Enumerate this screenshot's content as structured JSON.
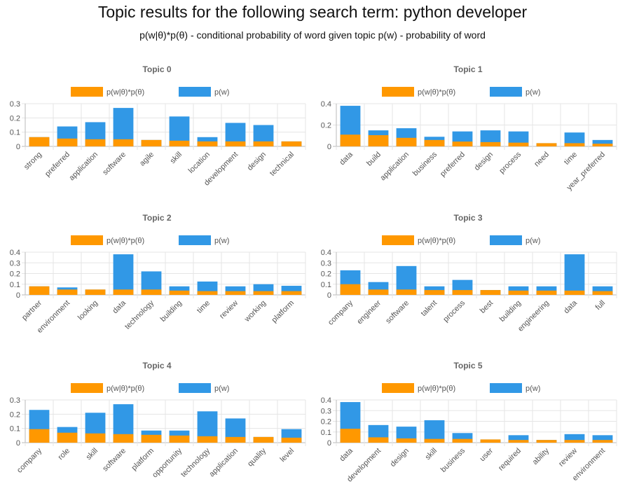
{
  "page": {
    "title": "Topic results for the following search term: python developer",
    "subtitle": "p(w|θ)*p(θ) - conditional probability of word given topic p(w) - probability of word"
  },
  "colors": {
    "conditional": "#ff9800",
    "marginal": "#3198e6"
  },
  "chart_data": [
    {
      "type": "bar",
      "title": "Topic 0",
      "legend": [
        "p(w|θ)*p(θ)",
        "p(w)"
      ],
      "legend_position": "top",
      "categories": [
        "strong",
        "preferred",
        "application",
        "software",
        "agile",
        "skill",
        "location",
        "development",
        "design",
        "technical"
      ],
      "series": [
        {
          "name": "p(w|θ)*p(θ)",
          "values": [
            0.065,
            0.055,
            0.05,
            0.05,
            0.045,
            0.04,
            0.035,
            0.035,
            0.035,
            0.035
          ]
        },
        {
          "name": "p(w)",
          "values": [
            0.065,
            0.14,
            0.17,
            0.27,
            0.045,
            0.21,
            0.065,
            0.165,
            0.15,
            0.035
          ]
        }
      ],
      "ylim": [
        0,
        0.3
      ],
      "yticks": [
        "0",
        "0.1",
        "0.2",
        "0.3"
      ],
      "grid": true,
      "overlay": true
    },
    {
      "type": "bar",
      "title": "Topic 1",
      "legend": [
        "p(w|θ)*p(θ)",
        "p(w)"
      ],
      "legend_position": "top",
      "categories": [
        "data",
        "build",
        "application",
        "business",
        "preferred",
        "design",
        "process",
        "need",
        "time",
        "year_preferred"
      ],
      "series": [
        {
          "name": "p(w|θ)*p(θ)",
          "values": [
            0.11,
            0.105,
            0.08,
            0.06,
            0.045,
            0.04,
            0.035,
            0.03,
            0.03,
            0.025
          ]
        },
        {
          "name": "p(w)",
          "values": [
            0.38,
            0.15,
            0.17,
            0.09,
            0.14,
            0.15,
            0.14,
            0.03,
            0.13,
            0.06
          ]
        }
      ],
      "ylim": [
        0,
        0.4
      ],
      "yticks": [
        "0",
        "0.2",
        "0.4"
      ],
      "grid": true,
      "overlay": true
    },
    {
      "type": "bar",
      "title": "Topic 2",
      "legend": [
        "p(w|θ)*p(θ)",
        "p(w)"
      ],
      "legend_position": "top",
      "categories": [
        "partner",
        "environment",
        "looking",
        "data",
        "technology",
        "building",
        "time",
        "review",
        "working",
        "platform"
      ],
      "series": [
        {
          "name": "p(w|θ)*p(θ)",
          "values": [
            0.08,
            0.05,
            0.05,
            0.05,
            0.05,
            0.04,
            0.035,
            0.035,
            0.035,
            0.035
          ]
        },
        {
          "name": "p(w)",
          "values": [
            0.08,
            0.07,
            0.05,
            0.38,
            0.22,
            0.08,
            0.125,
            0.08,
            0.1,
            0.085
          ]
        }
      ],
      "ylim": [
        0,
        0.4
      ],
      "yticks": [
        "0",
        "0.1",
        "0.2",
        "0.3",
        "0.4"
      ],
      "grid": true,
      "overlay": true
    },
    {
      "type": "bar",
      "title": "Topic 3",
      "legend": [
        "p(w|θ)*p(θ)",
        "p(w)"
      ],
      "legend_position": "top",
      "categories": [
        "company",
        "engineer",
        "software",
        "talent",
        "process",
        "best",
        "building",
        "engineering",
        "data",
        "full"
      ],
      "series": [
        {
          "name": "p(w|θ)*p(θ)",
          "values": [
            0.1,
            0.05,
            0.05,
            0.045,
            0.045,
            0.045,
            0.04,
            0.04,
            0.04,
            0.035
          ]
        },
        {
          "name": "p(w)",
          "values": [
            0.23,
            0.12,
            0.27,
            0.08,
            0.14,
            0.045,
            0.08,
            0.08,
            0.38,
            0.08
          ]
        }
      ],
      "ylim": [
        0,
        0.4
      ],
      "yticks": [
        "0",
        "0.1",
        "0.2",
        "0.3",
        "0.4"
      ],
      "grid": true,
      "overlay": true
    },
    {
      "type": "bar",
      "title": "Topic 4",
      "legend": [
        "p(w|θ)*p(θ)",
        "p(w)"
      ],
      "legend_position": "top",
      "categories": [
        "company",
        "role",
        "skill",
        "software",
        "platform",
        "opportunity",
        "technology",
        "application",
        "quality",
        "level"
      ],
      "series": [
        {
          "name": "p(w|θ)*p(θ)",
          "values": [
            0.095,
            0.07,
            0.065,
            0.06,
            0.055,
            0.05,
            0.045,
            0.04,
            0.04,
            0.035
          ]
        },
        {
          "name": "p(w)",
          "values": [
            0.23,
            0.11,
            0.21,
            0.27,
            0.085,
            0.085,
            0.22,
            0.17,
            0.04,
            0.095
          ]
        }
      ],
      "ylim": [
        0,
        0.3
      ],
      "yticks": [
        "0",
        "0.1",
        "0.2",
        "0.3"
      ],
      "grid": true,
      "overlay": true
    },
    {
      "type": "bar",
      "title": "Topic 5",
      "legend": [
        "p(w|θ)*p(θ)",
        "p(w)"
      ],
      "legend_position": "top",
      "categories": [
        "data",
        "development",
        "design",
        "skill",
        "business",
        "user",
        "required",
        "ability",
        "review",
        "environment"
      ],
      "series": [
        {
          "name": "p(w|θ)*p(θ)",
          "values": [
            0.13,
            0.05,
            0.04,
            0.035,
            0.035,
            0.03,
            0.025,
            0.025,
            0.025,
            0.025
          ]
        },
        {
          "name": "p(w)",
          "values": [
            0.38,
            0.165,
            0.15,
            0.21,
            0.09,
            0.03,
            0.07,
            0.025,
            0.08,
            0.07
          ]
        }
      ],
      "ylim": [
        0,
        0.4
      ],
      "yticks": [
        "0",
        "0.1",
        "0.2",
        "0.3",
        "0.4"
      ],
      "grid": true,
      "overlay": true
    }
  ]
}
